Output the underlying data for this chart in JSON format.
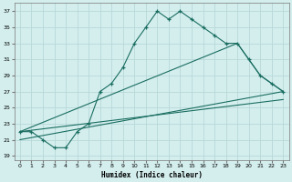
{
  "xlabel": "Humidex (Indice chaleur)",
  "bg_color": "#d4eeee",
  "grid_color": "#b8d8d8",
  "line_color": "#1a6e60",
  "xlim": [
    -0.5,
    23.5
  ],
  "ylim": [
    18.5,
    38
  ],
  "xticks": [
    0,
    1,
    2,
    3,
    4,
    5,
    6,
    7,
    8,
    9,
    10,
    11,
    12,
    13,
    14,
    15,
    16,
    17,
    18,
    19,
    20,
    21,
    22,
    23
  ],
  "yticks": [
    19,
    21,
    23,
    25,
    27,
    29,
    31,
    33,
    35,
    37
  ],
  "line1_x": [
    0,
    1,
    2,
    3,
    4,
    5,
    6,
    7,
    8,
    9,
    10,
    11,
    12,
    13,
    14,
    15,
    16,
    17,
    18,
    19,
    20,
    21,
    22,
    23
  ],
  "line1_y": [
    22,
    22,
    21,
    20,
    20,
    22,
    23,
    27,
    28,
    30,
    33,
    35,
    37,
    36,
    37,
    36,
    35,
    34,
    33,
    33,
    31,
    29,
    28,
    27
  ],
  "line2_x": [
    0,
    19,
    20,
    21,
    22,
    23
  ],
  "line2_y": [
    22,
    33,
    31,
    29,
    28,
    27
  ],
  "line3_x": [
    0,
    23
  ],
  "line3_y": [
    21,
    27
  ],
  "line4_x": [
    0,
    23
  ],
  "line4_y": [
    22,
    26
  ]
}
